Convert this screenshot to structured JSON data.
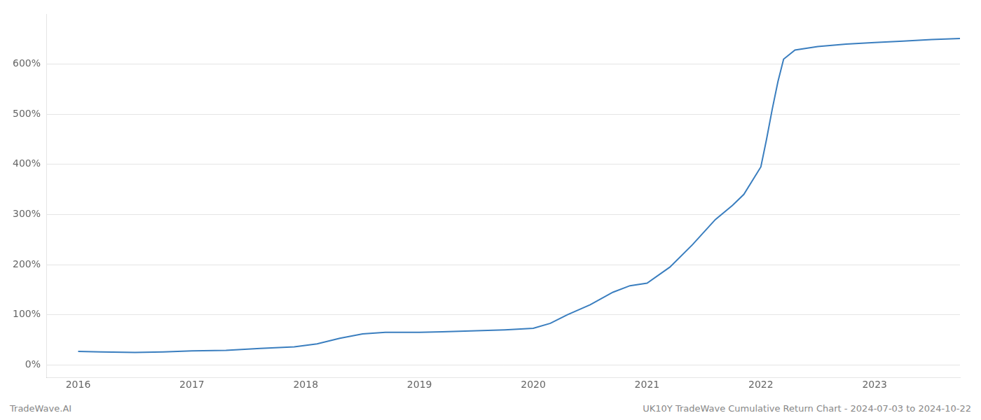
{
  "chart_data": {
    "type": "line",
    "x": [
      2016.0,
      2016.2,
      2016.5,
      2016.75,
      2017.0,
      2017.3,
      2017.6,
      2017.9,
      2018.1,
      2018.3,
      2018.5,
      2018.7,
      2018.9,
      2019.0,
      2019.2,
      2019.5,
      2019.75,
      2020.0,
      2020.15,
      2020.3,
      2020.5,
      2020.7,
      2020.85,
      2021.0,
      2021.2,
      2021.4,
      2021.6,
      2021.75,
      2021.85,
      2022.0,
      2022.05,
      2022.1,
      2022.15,
      2022.2,
      2022.3,
      2022.5,
      2022.75,
      2023.0,
      2023.25,
      2023.5,
      2023.75
    ],
    "values": [
      27,
      26,
      25,
      26,
      28,
      29,
      33,
      36,
      42,
      53,
      62,
      65,
      65,
      65,
      66,
      68,
      70,
      73,
      83,
      100,
      120,
      145,
      158,
      163,
      195,
      240,
      290,
      318,
      340,
      395,
      450,
      510,
      565,
      610,
      628,
      635,
      640,
      643,
      646,
      649,
      651
    ],
    "color": "#3a7ebf",
    "xlim": [
      2015.72,
      2023.75
    ],
    "xticks": [
      2016,
      2017,
      2018,
      2019,
      2020,
      2021,
      2022,
      2023
    ],
    "ylim": [
      -25,
      700
    ],
    "yticks": [
      {
        "value": 0,
        "label": "0%"
      },
      {
        "value": 100,
        "label": "100%"
      },
      {
        "value": 200,
        "label": "200%"
      },
      {
        "value": 300,
        "label": "300%"
      },
      {
        "value": 400,
        "label": "400%"
      },
      {
        "value": 500,
        "label": "500%"
      },
      {
        "value": 600,
        "label": "600%"
      }
    ],
    "grid": "y",
    "annotations": [
      "TradeWave.AI",
      "UK10Y TradeWave Cumulative Return Chart - 2024-07-03 to 2024-10-22"
    ]
  }
}
